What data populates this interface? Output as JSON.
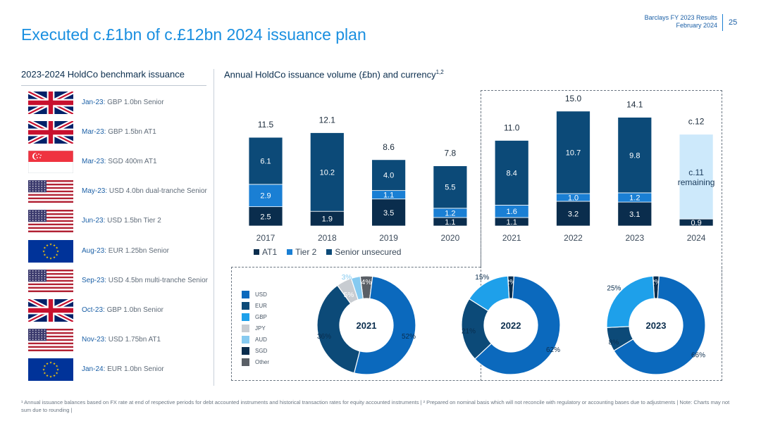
{
  "header": {
    "report": "Barclays FY 2023 Results",
    "date": "February 2024",
    "page": "25"
  },
  "title": "Executed c.£1bn of c.£12bn 2024 issuance plan",
  "left": {
    "heading": "2023-2024 HoldCo benchmark issuance",
    "items": [
      {
        "flag": "uk",
        "date": "Jan-23:",
        "text": "GBP 1.0bn Senior"
      },
      {
        "flag": "uk",
        "date": "Mar-23:",
        "text": "GBP 1.5bn AT1"
      },
      {
        "flag": "sg",
        "date": "Mar-23:",
        "text": "SGD 400m AT1"
      },
      {
        "flag": "us",
        "date": "May-23:",
        "text": "USD 4.0bn dual-tranche Senior"
      },
      {
        "flag": "us",
        "date": "Jun-23:",
        "text": "USD 1.5bn Tier 2"
      },
      {
        "flag": "eu",
        "date": "Aug-23:",
        "text": "EUR 1.25bn Senior"
      },
      {
        "flag": "us",
        "date": "Sep-23:",
        "text": "USD 4.5bn multi-tranche Senior"
      },
      {
        "flag": "uk",
        "date": "Oct-23:",
        "text": "GBP 1.0bn Senior"
      },
      {
        "flag": "us",
        "date": "Nov-23:",
        "text": "USD 1.75bn AT1"
      },
      {
        "flag": "eu",
        "date": "Jan-24:",
        "text": "EUR 1.0bn Senior"
      }
    ]
  },
  "right": {
    "heading": "Annual HoldCo issuance volume (£bn) and currency",
    "heading_sup": "1,2"
  },
  "chart_data": [
    {
      "type": "bar",
      "title": "Annual HoldCo issuance volume (£bn)",
      "categories": [
        "2017",
        "2018",
        "2019",
        "2020",
        "2021",
        "2022",
        "2023",
        "2024"
      ],
      "series": [
        {
          "name": "AT1",
          "color": "#0a2d4d",
          "values": [
            2.5,
            1.9,
            3.5,
            1.1,
            1.1,
            3.2,
            3.1,
            0.9
          ]
        },
        {
          "name": "Tier 2",
          "color": "#1a7fd4",
          "values": [
            2.9,
            0,
            1.1,
            1.2,
            1.6,
            1.0,
            1.2,
            0
          ]
        },
        {
          "name": "Senior unsecured",
          "color": "#0c4a78",
          "values": [
            6.1,
            10.2,
            4.0,
            5.5,
            8.4,
            10.7,
            9.8,
            0
          ]
        },
        {
          "name": "remaining",
          "color": "#cde9fb",
          "values": [
            0,
            0,
            0,
            0,
            0,
            0,
            0,
            11
          ]
        }
      ],
      "totals": [
        "11.5",
        "12.1",
        "8.6",
        "7.8",
        "11.0",
        "15.0",
        "14.1",
        "c.12"
      ],
      "remaining_label": "c.11 remaining",
      "ylim": [
        0,
        16
      ]
    },
    {
      "type": "pie",
      "title": "2021",
      "slices": [
        {
          "name": "USD",
          "value": 52,
          "label": "52%",
          "color": "#0b69bd"
        },
        {
          "name": "EUR",
          "value": 36,
          "label": "36%",
          "color": "#0c4a78"
        },
        {
          "name": "JPY",
          "value": 5,
          "label": "5%",
          "color": "#c8ccd1"
        },
        {
          "name": "AUD",
          "value": 3,
          "label": "3%",
          "color": "#86caf0"
        },
        {
          "name": "Other",
          "value": 4,
          "label": "4%",
          "color": "#5a5f66"
        }
      ]
    },
    {
      "type": "pie",
      "title": "2022",
      "slices": [
        {
          "name": "USD",
          "value": 62,
          "label": "62%",
          "color": "#0b69bd"
        },
        {
          "name": "EUR",
          "value": 21,
          "label": "21%",
          "color": "#0c4a78"
        },
        {
          "name": "GBP",
          "value": 15,
          "label": "15%",
          "color": "#1ea0ea"
        },
        {
          "name": "SGD",
          "value": 2,
          "label": "2%",
          "color": "#0a2d4d"
        }
      ]
    },
    {
      "type": "pie",
      "title": "2023",
      "slices": [
        {
          "name": "USD",
          "value": 66,
          "label": "66%",
          "color": "#0b69bd"
        },
        {
          "name": "EUR",
          "value": 8,
          "label": "8%",
          "color": "#0c4a78"
        },
        {
          "name": "GBP",
          "value": 25,
          "label": "25%",
          "color": "#1ea0ea"
        },
        {
          "name": "SGD",
          "value": 2,
          "label": "2%",
          "color": "#0a2d4d"
        }
      ]
    }
  ],
  "currency_legend": [
    {
      "name": "USD",
      "color": "#0b69bd"
    },
    {
      "name": "EUR",
      "color": "#0c4a78"
    },
    {
      "name": "GBP",
      "color": "#1ea0ea"
    },
    {
      "name": "JPY",
      "color": "#c8ccd1"
    },
    {
      "name": "AUD",
      "color": "#86caf0"
    },
    {
      "name": "SGD",
      "color": "#0a2d4d"
    },
    {
      "name": "Other",
      "color": "#5a5f66"
    }
  ],
  "footnote": "¹ Annual issuance balances based on FX rate at end of respective periods for debt accounted instruments and historical transaction rates for equity accounted instruments | ² Prepared on nominal basis which will not reconcile with regulatory or accounting bases due to adjustments | Note: Charts may not sum due to rounding |"
}
